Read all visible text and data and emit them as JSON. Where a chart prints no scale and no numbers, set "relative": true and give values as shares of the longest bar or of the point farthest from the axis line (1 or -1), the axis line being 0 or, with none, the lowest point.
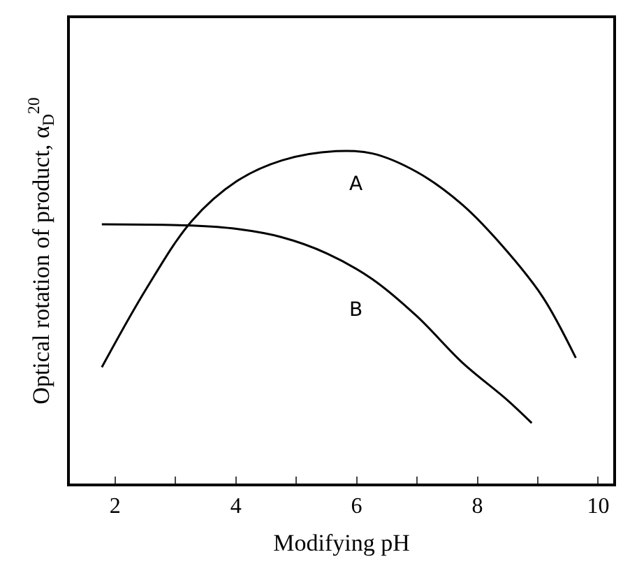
{
  "chart_data": {
    "type": "line",
    "relative": true,
    "xlabel": "Modifying pH",
    "ylabel": "Optical rotation of product, α$_{D}$$^{20}$",
    "xlim": [
      1.25,
      10.25
    ],
    "xticks": [
      2,
      {
        "value": 3,
        "label": null
      },
      4,
      {
        "value": 5,
        "label": null
      },
      6,
      {
        "value": 7,
        "label": null
      },
      8,
      {
        "value": 9,
        "label": null
      },
      10
    ],
    "grid": false,
    "legend": false,
    "marker": "none",
    "line_style": "solid",
    "series": [
      {
        "name": "A",
        "color": "#000000",
        "x": [
          1.78,
          2.52,
          3.27,
          4.01,
          4.76,
          5.66,
          6.26,
          7.0,
          7.75,
          8.49,
          9.09,
          9.63
        ],
        "values": [
          0.35,
          0.587,
          0.79,
          0.909,
          0.972,
          1.0,
          0.993,
          0.937,
          0.839,
          0.699,
          0.559,
          0.378
        ]
      },
      {
        "name": "B",
        "color": "#000000",
        "x": [
          1.78,
          3.27,
          4.01,
          4.76,
          5.51,
          6.26,
          7.0,
          7.75,
          8.49,
          8.9
        ],
        "values": [
          0.78,
          0.776,
          0.766,
          0.741,
          0.692,
          0.615,
          0.503,
          0.364,
          0.252,
          0.182
        ]
      }
    ]
  }
}
